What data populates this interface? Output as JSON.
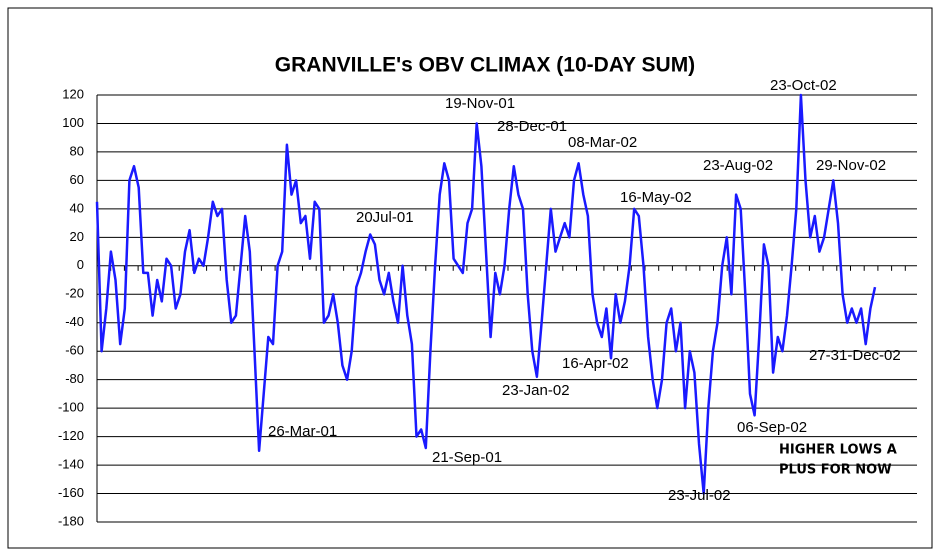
{
  "chart_data": {
    "type": "line",
    "title": "GRANVILLE's OBV CLIMAX (10-DAY SUM)",
    "ylim": [
      -180,
      120
    ],
    "yticks": [
      -180,
      -160,
      -140,
      -120,
      -100,
      -80,
      -60,
      -40,
      -20,
      0,
      20,
      40,
      60,
      80,
      100,
      120
    ],
    "grid": true,
    "color": "#1a1aff",
    "values": [
      45,
      -60,
      -30,
      10,
      -10,
      -55,
      -30,
      60,
      70,
      55,
      -5,
      -5,
      -35,
      -10,
      -25,
      5,
      0,
      -30,
      -20,
      10,
      25,
      -5,
      5,
      0,
      20,
      45,
      35,
      40,
      -10,
      -40,
      -35,
      0,
      35,
      10,
      -60,
      -130,
      -90,
      -50,
      -55,
      0,
      10,
      85,
      50,
      60,
      30,
      35,
      5,
      45,
      40,
      -40,
      -35,
      -20,
      -40,
      -70,
      -80,
      -60,
      -15,
      -5,
      10,
      22,
      15,
      -10,
      -20,
      -5,
      -25,
      -40,
      0,
      -35,
      -55,
      -120,
      -115,
      -128,
      -60,
      0,
      50,
      72,
      60,
      5,
      0,
      -5,
      30,
      40,
      100,
      70,
      10,
      -50,
      -5,
      -20,
      0,
      40,
      70,
      50,
      40,
      -20,
      -60,
      -78,
      -40,
      0,
      40,
      10,
      20,
      30,
      20,
      60,
      72,
      50,
      35,
      -20,
      -40,
      -50,
      -30,
      -65,
      -20,
      -40,
      -25,
      0,
      40,
      35,
      0,
      -50,
      -80,
      -100,
      -80,
      -40,
      -30,
      -60,
      -40,
      -100,
      -60,
      -75,
      -125,
      -160,
      -100,
      -60,
      -40,
      0,
      20,
      -20,
      50,
      40,
      -20,
      -90,
      -105,
      -50,
      15,
      0,
      -75,
      -50,
      -60,
      -35,
      0,
      40,
      120,
      60,
      20,
      35,
      10,
      20,
      40,
      60,
      30,
      -20,
      -40,
      -30,
      -40,
      -30,
      -55,
      -30,
      -15
    ],
    "annotations": [
      "26-Mar-01",
      "21-Sep-01",
      "20Jul-01",
      "19-Nov-01",
      "28-Dec-01",
      "23-Jan-02",
      "08-Mar-02",
      "16-Apr-02",
      "16-May-02",
      "23-Jul-02",
      "23-Aug-02",
      "06-Sep-02",
      "23-Oct-02",
      "29-Nov-02",
      "27-31-Dec-02",
      "HIGHER LOWS A",
      "PLUS FOR NOW"
    ]
  }
}
